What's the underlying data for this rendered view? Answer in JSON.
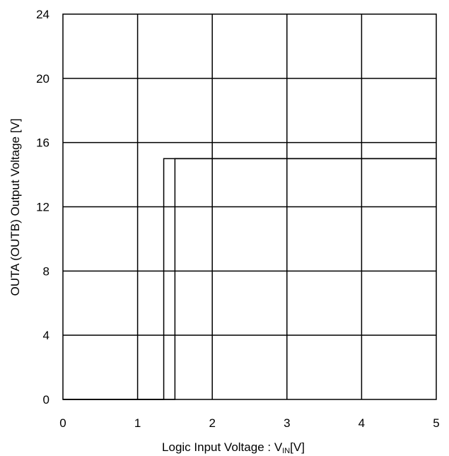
{
  "chart_data": {
    "type": "line",
    "xlabel": {
      "prefix": "Logic Input Voltage : V",
      "subscript": "IN",
      "suffix": "[V]"
    },
    "ylabel": "OUTA (OUTB) Output Voltage [V]",
    "xlim": [
      0,
      5
    ],
    "ylim": [
      0,
      24
    ],
    "xticks": [
      0,
      1,
      2,
      3,
      4,
      5
    ],
    "yticks": [
      0,
      4,
      8,
      12,
      16,
      20,
      24
    ],
    "grid": true,
    "legend": "none",
    "series": [
      {
        "x": [
          0,
          1.35,
          1.35,
          5
        ],
        "y": [
          0,
          0,
          15,
          15
        ]
      },
      {
        "x": [
          0,
          1.5,
          1.5,
          5
        ],
        "y": [
          0,
          0,
          15,
          15
        ]
      }
    ],
    "colors": {
      "line": "#000000",
      "grid": "#000000",
      "background": "#ffffff"
    }
  }
}
